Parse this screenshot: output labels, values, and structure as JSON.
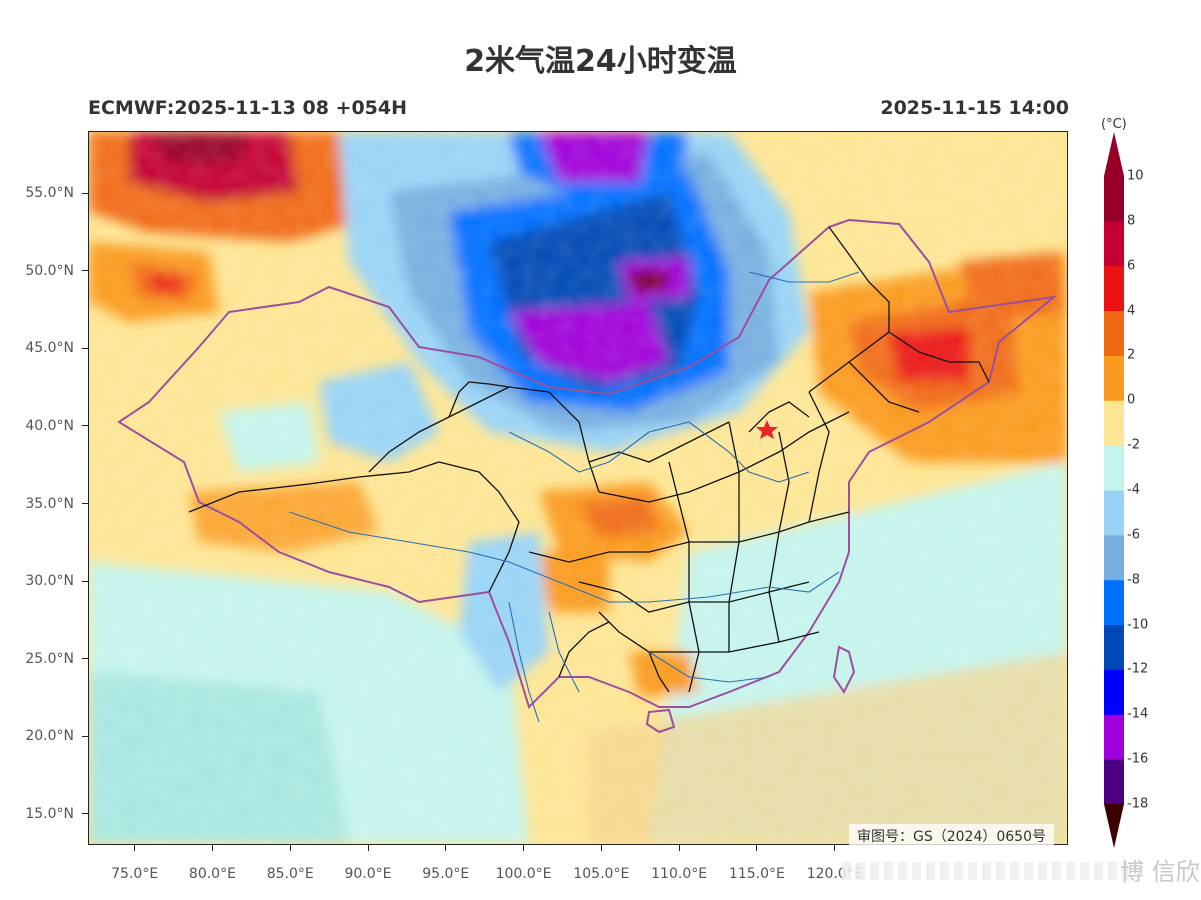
{
  "title": "2米气温24小时变温",
  "subtitle_left": "ECMWF:2025-11-13 08 +054H",
  "subtitle_right": "2025-11-15 14:00",
  "map": {
    "lon_range": [
      72,
      135
    ],
    "lat_range": [
      13,
      59
    ],
    "review_number": "审图号：GS（2024）0650号",
    "star_marker": {
      "name": "beijing-star-icon",
      "lon": 116.4,
      "lat": 39.9,
      "color": "#e8232a"
    }
  },
  "axes": {
    "lat_labels": [
      {
        "value": 55,
        "text": "55.0°N"
      },
      {
        "value": 50,
        "text": "50.0°N"
      },
      {
        "value": 45,
        "text": "45.0°N"
      },
      {
        "value": 40,
        "text": "40.0°N"
      },
      {
        "value": 35,
        "text": "35.0°N"
      },
      {
        "value": 30,
        "text": "30.0°N"
      },
      {
        "value": 25,
        "text": "25.0°N"
      },
      {
        "value": 20,
        "text": "20.0°N"
      },
      {
        "value": 15,
        "text": "15.0°N"
      }
    ],
    "lon_labels": [
      {
        "value": 75,
        "text": "75.0°E"
      },
      {
        "value": 80,
        "text": "80.0°E"
      },
      {
        "value": 85,
        "text": "85.0°E"
      },
      {
        "value": 90,
        "text": "90.0°E"
      },
      {
        "value": 95,
        "text": "95.0°E"
      },
      {
        "value": 100,
        "text": "100.0°E"
      },
      {
        "value": 105,
        "text": "105.0°E"
      },
      {
        "value": 110,
        "text": "110.0°E"
      },
      {
        "value": 115,
        "text": "115.0°E"
      },
      {
        "value": 120,
        "text": "120.0°E"
      }
    ]
  },
  "colorbar": {
    "unit": "(°C)",
    "levels": [
      {
        "value": -18,
        "text": "-18",
        "color": "#800000"
      },
      {
        "value": -16,
        "text": "-16",
        "color": "#4b0082"
      },
      {
        "value": -14,
        "text": "-14",
        "color": "#9f00d9"
      },
      {
        "value": -12,
        "text": "-12",
        "color": "#0000ff"
      },
      {
        "value": -10,
        "text": "-10",
        "color": "#0048b5"
      },
      {
        "value": -8,
        "text": "-8",
        "color": "#0070ff"
      },
      {
        "value": -6,
        "text": "-6",
        "color": "#76aee0"
      },
      {
        "value": -4,
        "text": "-4",
        "color": "#98d3f5"
      },
      {
        "value": -2,
        "text": "-2",
        "color": "#c4f4ec"
      },
      {
        "value": 0,
        "text": "0",
        "color": "#fde593"
      },
      {
        "value": 2,
        "text": "2",
        "color": "#fa9a1e"
      },
      {
        "value": 4,
        "text": "4",
        "color": "#f06a14"
      },
      {
        "value": 6,
        "text": "6",
        "color": "#eb1212"
      },
      {
        "value": 8,
        "text": "8",
        "color": "#c40032"
      },
      {
        "value": 10,
        "text": "10",
        "color": "#960028"
      }
    ],
    "under_color": "#3d0000",
    "over_color": "#960028"
  },
  "watermark": "博 信欣"
}
